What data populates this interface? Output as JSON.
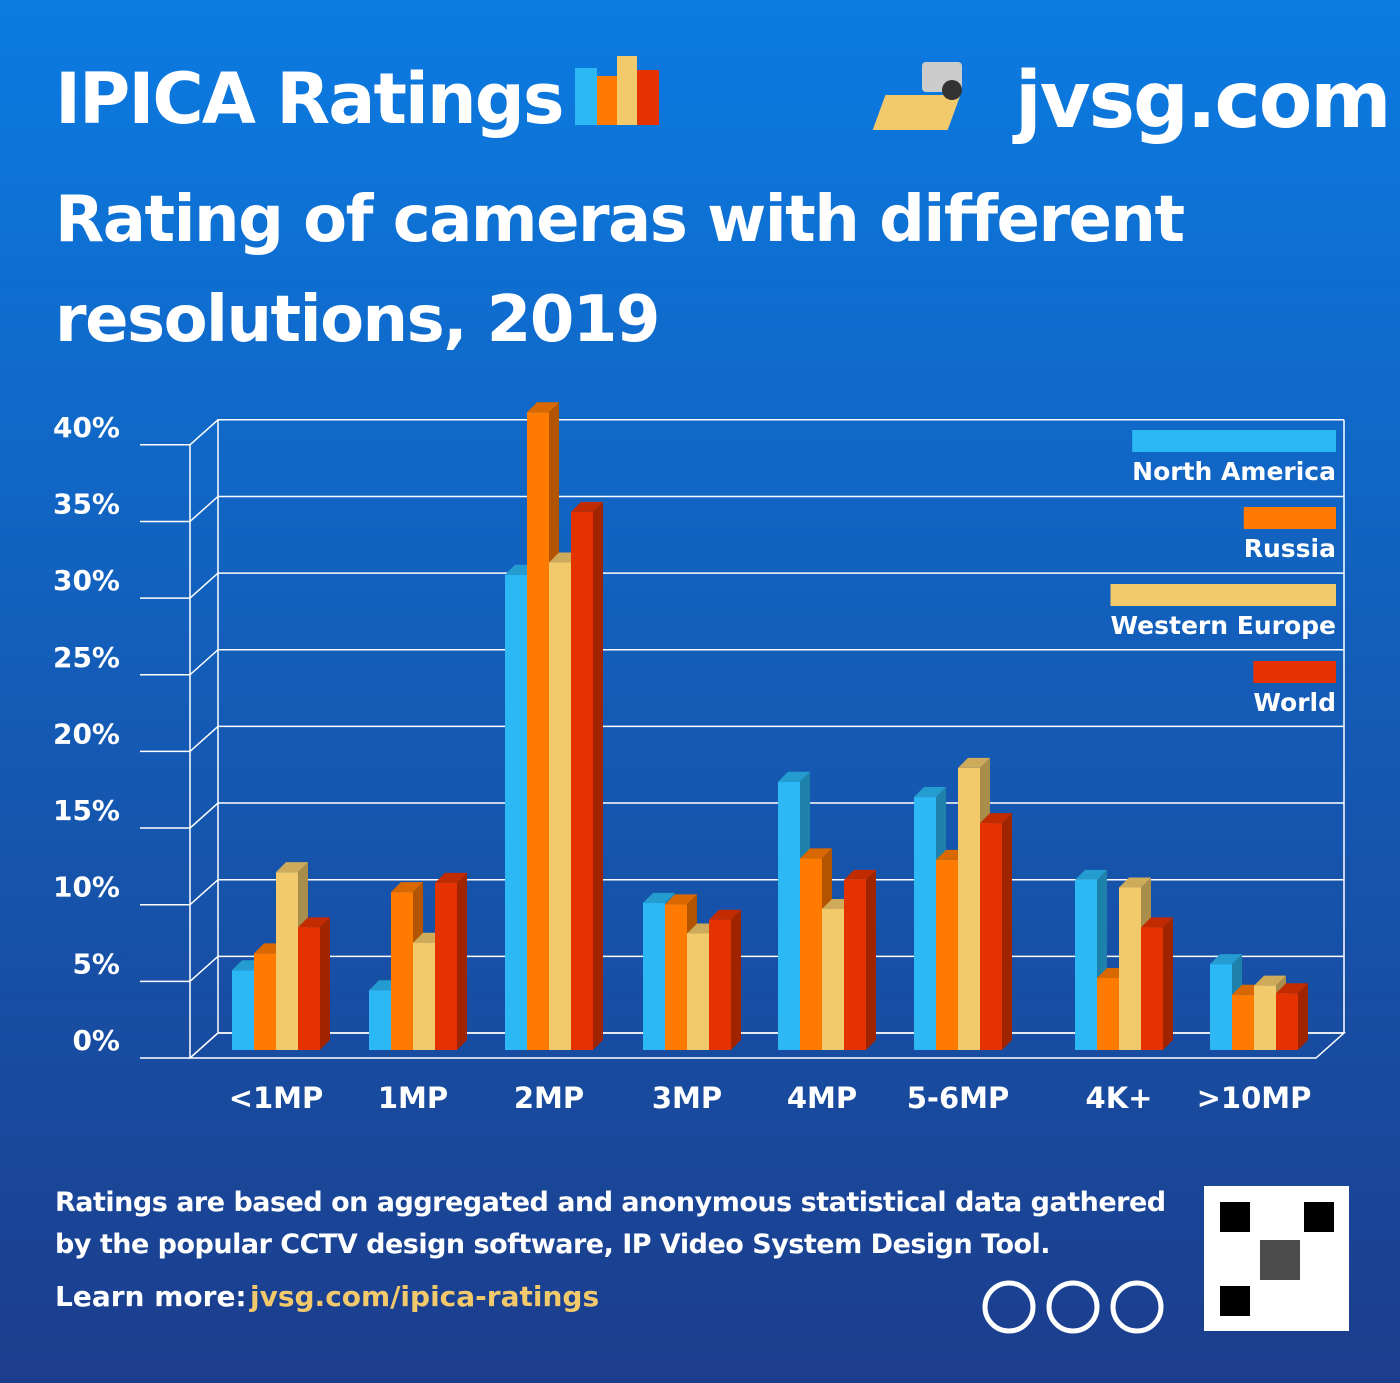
{
  "header": {
    "brand": "IPICA Ratings",
    "site": "jvsg.com"
  },
  "chart_data": {
    "type": "bar",
    "title": "Rating of cameras with different resolutions, 2019",
    "categories": [
      "<1MP",
      "1MP",
      "2MP",
      "3MP",
      "4MP",
      "5-6MP",
      "4K+",
      ">10MP"
    ],
    "series": [
      {
        "name": "North America",
        "color": "#2bb8f5",
        "values": [
          5.2,
          3.9,
          31,
          9.6,
          17.5,
          16.5,
          11.1,
          5.6
        ]
      },
      {
        "name": "Russia",
        "color": "#ff7a00",
        "values": [
          6.3,
          10.3,
          41.6,
          9.5,
          12.5,
          12.4,
          4.7,
          3.6
        ]
      },
      {
        "name": "Western Europe",
        "color": "#f2c96b",
        "values": [
          11.6,
          7.0,
          31.8,
          7.6,
          9.2,
          18.4,
          10.6,
          4.2
        ]
      },
      {
        "name": "World",
        "color": "#e43300",
        "values": [
          8.0,
          10.9,
          35.1,
          8.5,
          11.1,
          14.8,
          8.0,
          3.7
        ]
      }
    ],
    "ylim": [
      0,
      40
    ],
    "yticks": [
      {
        "value": 0,
        "label": "0%"
      },
      {
        "value": 5,
        "label": "5%"
      },
      {
        "value": 10,
        "label": "10%"
      },
      {
        "value": 15,
        "label": "15%"
      },
      {
        "value": 20,
        "label": "20%"
      },
      {
        "value": 25,
        "label": "25%"
      },
      {
        "value": 30,
        "label": "30%"
      },
      {
        "value": 35,
        "label": "35%"
      },
      {
        "value": 40,
        "label": "40%"
      }
    ],
    "grid": true,
    "legend": "top-right"
  },
  "footer": {
    "note": "Ratings are based on aggregated and anonymous statistical data gathered by the popular CCTV design software, IP Video System Design Tool.",
    "learn_label": "Learn more:",
    "link": "jvsg.com/ipica-ratings"
  }
}
